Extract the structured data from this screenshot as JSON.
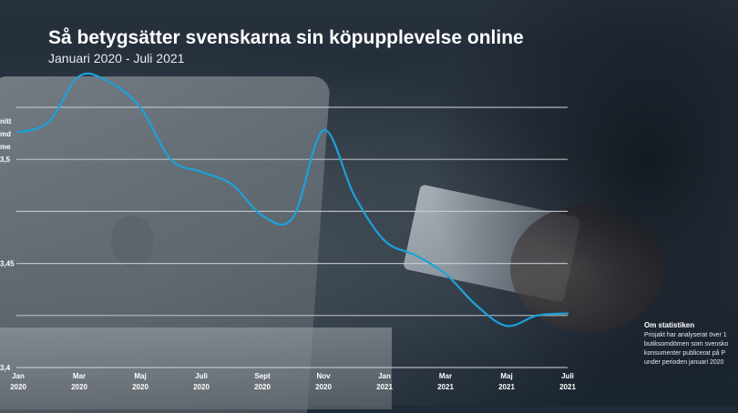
{
  "title": "Så betygsätter svenskarna sin köpupplevelse online",
  "subtitle": "Januari 2020 - Juli 2021",
  "colors": {
    "line": "#1aa3d9",
    "grid": "#c9d0d6",
    "text": "#ffffff"
  },
  "chart_data": {
    "type": "line",
    "ylabel": [
      "nitt",
      "md",
      "me"
    ],
    "yticks": [
      {
        "value": 3.5,
        "label": "3,5"
      },
      {
        "value": 3.45,
        "label": "3,45"
      },
      {
        "value": 3.4,
        "label": "3,4"
      }
    ],
    "ylim": [
      3.4,
      3.525
    ],
    "grid_values": [
      3.4,
      3.425,
      3.45,
      3.475,
      3.5,
      3.525
    ],
    "grid": true,
    "xticks": [
      {
        "index": 0,
        "label": [
          "Jan",
          "2020"
        ]
      },
      {
        "index": 2,
        "label": [
          "Mar",
          "2020"
        ]
      },
      {
        "index": 4,
        "label": [
          "Maj",
          "2020"
        ]
      },
      {
        "index": 6,
        "label": [
          "Juli",
          "2020"
        ]
      },
      {
        "index": 8,
        "label": [
          "Sept",
          "2020"
        ]
      },
      {
        "index": 10,
        "label": [
          "Nov",
          "2020"
        ]
      },
      {
        "index": 12,
        "label": [
          "Jan",
          "2021"
        ]
      },
      {
        "index": 14,
        "label": [
          "Mar",
          "2021"
        ]
      },
      {
        "index": 16,
        "label": [
          "Maj",
          "2021"
        ]
      },
      {
        "index": 18,
        "label": [
          "Juli",
          "2021"
        ]
      }
    ],
    "x": [
      "Jan 2020",
      "Feb 2020",
      "Mar 2020",
      "Apr 2020",
      "Maj 2020",
      "Jun 2020",
      "Juli 2020",
      "Aug 2020",
      "Sept 2020",
      "Okt 2020",
      "Nov 2020",
      "Dec 2020",
      "Jan 2021",
      "Feb 2021",
      "Mar 2021",
      "Apr 2021",
      "Maj 2021",
      "Jun 2021",
      "Juli 2021"
    ],
    "series": [
      {
        "values": [
          3.513,
          3.518,
          3.54,
          3.537,
          3.525,
          3.5,
          3.494,
          3.488,
          3.473,
          3.472,
          3.514,
          3.483,
          3.461,
          3.454,
          3.445,
          3.43,
          3.42,
          3.425,
          3.426
        ]
      }
    ]
  },
  "about": {
    "heading": "Om statistiken",
    "text": "Prisjakt har analyserat över 1\nbutiksomdömen som svensko\nkonsumenter publicerat på P\nunder perioden januari 2020"
  }
}
